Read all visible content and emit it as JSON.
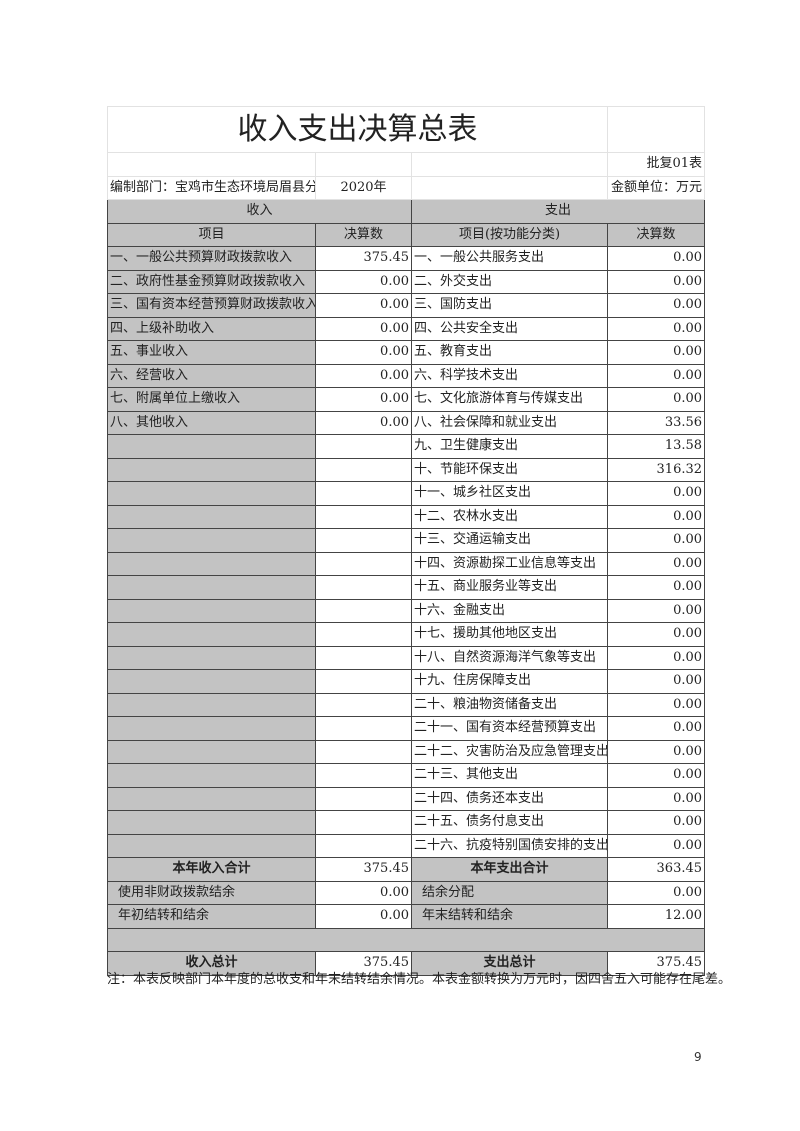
{
  "title": "收入支出决算总表",
  "form_no": "批复01表",
  "department": "编制部门：宝鸡市生态环境局眉县分局",
  "year": "2020年",
  "unit": "金额单位：万元",
  "income_header": "收入",
  "expense_header": "支出",
  "col_item": "项目",
  "col_amount": "决算数",
  "col_item_func": "项目(按功能分类)",
  "col_amount2": "决算数",
  "rows": [
    {
      "in": "一、一般公共预算财政拨款收入",
      "iv": "375.45",
      "ex": "一、一般公共服务支出",
      "ev": "0.00"
    },
    {
      "in": "二、政府性基金预算财政拨款收入",
      "iv": "0.00",
      "ex": "二、外交支出",
      "ev": "0.00"
    },
    {
      "in": "三、国有资本经营预算财政拨款收入",
      "iv": "0.00",
      "ex": "三、国防支出",
      "ev": "0.00"
    },
    {
      "in": "四、上级补助收入",
      "iv": "0.00",
      "ex": "四、公共安全支出",
      "ev": "0.00"
    },
    {
      "in": "五、事业收入",
      "iv": "0.00",
      "ex": "五、教育支出",
      "ev": "0.00"
    },
    {
      "in": "六、经营收入",
      "iv": "0.00",
      "ex": "六、科学技术支出",
      "ev": "0.00"
    },
    {
      "in": "七、附属单位上缴收入",
      "iv": "0.00",
      "ex": "七、文化旅游体育与传媒支出",
      "ev": "0.00"
    },
    {
      "in": "八、其他收入",
      "iv": "0.00",
      "ex": "八、社会保障和就业支出",
      "ev": "33.56"
    },
    {
      "in": "",
      "iv": "",
      "ex": "九、卫生健康支出",
      "ev": "13.58"
    },
    {
      "in": "",
      "iv": "",
      "ex": "十、节能环保支出",
      "ev": "316.32"
    },
    {
      "in": "",
      "iv": "",
      "ex": "十一、城乡社区支出",
      "ev": "0.00"
    },
    {
      "in": "",
      "iv": "",
      "ex": "十二、农林水支出",
      "ev": "0.00"
    },
    {
      "in": "",
      "iv": "",
      "ex": "十三、交通运输支出",
      "ev": "0.00"
    },
    {
      "in": "",
      "iv": "",
      "ex": "十四、资源勘探工业信息等支出",
      "ev": "0.00"
    },
    {
      "in": "",
      "iv": "",
      "ex": "十五、商业服务业等支出",
      "ev": "0.00"
    },
    {
      "in": "",
      "iv": "",
      "ex": "十六、金融支出",
      "ev": "0.00"
    },
    {
      "in": "",
      "iv": "",
      "ex": "十七、援助其他地区支出",
      "ev": "0.00"
    },
    {
      "in": "",
      "iv": "",
      "ex": "十八、自然资源海洋气象等支出",
      "ev": "0.00"
    },
    {
      "in": "",
      "iv": "",
      "ex": "十九、住房保障支出",
      "ev": "0.00"
    },
    {
      "in": "",
      "iv": "",
      "ex": "二十、粮油物资储备支出",
      "ev": "0.00"
    },
    {
      "in": "",
      "iv": "",
      "ex": "二十一、国有资本经营预算支出",
      "ev": "0.00"
    },
    {
      "in": "",
      "iv": "",
      "ex": "二十二、灾害防治及应急管理支出",
      "ev": "0.00"
    },
    {
      "in": "",
      "iv": "",
      "ex": "二十三、其他支出",
      "ev": "0.00"
    },
    {
      "in": "",
      "iv": "",
      "ex": "二十四、债务还本支出",
      "ev": "0.00"
    },
    {
      "in": "",
      "iv": "",
      "ex": "二十五、债务付息支出",
      "ev": "0.00"
    },
    {
      "in": "",
      "iv": "",
      "ex": "二十六、抗疫特别国债安排的支出",
      "ev": "0.00"
    }
  ],
  "summary": {
    "year_income_label": "本年收入合计",
    "year_income": "375.45",
    "year_expense_label": "本年支出合计",
    "year_expense": "363.45",
    "nonfiscal_label": "使用非财政拨款结余",
    "nonfiscal": "0.00",
    "surplus_alloc_label": "结余分配",
    "surplus_alloc": "0.00",
    "begin_label": "年初结转和结余",
    "begin": "0.00",
    "end_label": "年末结转和结余",
    "end": "12.00",
    "total_income_label": "收入总计",
    "total_income": "375.45",
    "total_expense_label": "支出总计",
    "total_expense": "375.45"
  },
  "note": "注：本表反映部门本年度的总收支和年末结转结余情况。本表金额转换为万元时，因四舍五入可能存在尾差。",
  "page_number": "9"
}
